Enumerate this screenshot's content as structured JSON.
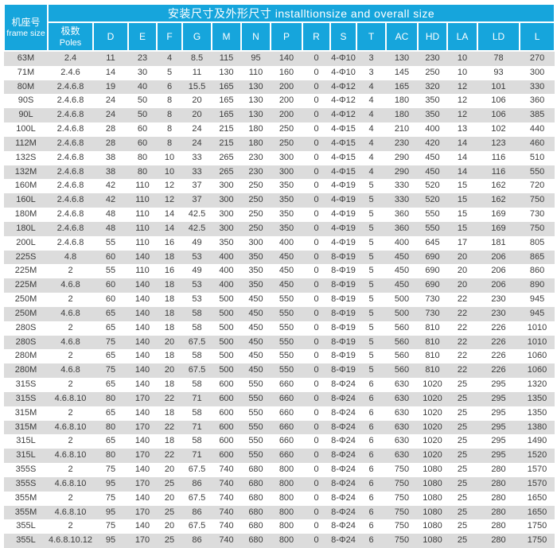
{
  "table": {
    "title": "安装尺寸及外形尺寸 installtionsize and overall size",
    "frame_header": {
      "zh": "机座号",
      "en": "frame size"
    },
    "poles_header": {
      "zh": "极数",
      "en": "Poles"
    },
    "letter_columns": [
      "D",
      "E",
      "F",
      "G",
      "M",
      "N",
      "P",
      "R",
      "S",
      "T",
      "AC",
      "HD",
      "LA",
      "LD",
      "L"
    ],
    "column_keys": [
      "frame_size",
      "poles",
      "d",
      "e",
      "f",
      "g",
      "m",
      "n",
      "p",
      "r",
      "s",
      "t",
      "ac",
      "hd",
      "la",
      "ld",
      "l"
    ],
    "colors": {
      "header_blue": "#16a5dc",
      "stripe_gray": "#dcdcdc",
      "text_dark": "#3c3c3c",
      "header_text": "#ffffff"
    },
    "rows": [
      [
        "63M",
        "2.4",
        "11",
        "23",
        "4",
        "8.5",
        "115",
        "95",
        "140",
        "0",
        "4-Φ10",
        "3",
        "130",
        "230",
        "10",
        "78",
        "270"
      ],
      [
        "71M",
        "2.4.6",
        "14",
        "30",
        "5",
        "11",
        "130",
        "110",
        "160",
        "0",
        "4-Φ10",
        "3",
        "145",
        "250",
        "10",
        "93",
        "300"
      ],
      [
        "80M",
        "2.4.6.8",
        "19",
        "40",
        "6",
        "15.5",
        "165",
        "130",
        "200",
        "0",
        "4-Φ12",
        "4",
        "165",
        "320",
        "12",
        "101",
        "330"
      ],
      [
        "90S",
        "2.4.6.8",
        "24",
        "50",
        "8",
        "20",
        "165",
        "130",
        "200",
        "0",
        "4-Φ12",
        "4",
        "180",
        "350",
        "12",
        "106",
        "360"
      ],
      [
        "90L",
        "2.4.6.8",
        "24",
        "50",
        "8",
        "20",
        "165",
        "130",
        "200",
        "0",
        "4-Φ12",
        "4",
        "180",
        "350",
        "12",
        "106",
        "385"
      ],
      [
        "100L",
        "2.4.6.8",
        "28",
        "60",
        "8",
        "24",
        "215",
        "180",
        "250",
        "0",
        "4-Φ15",
        "4",
        "210",
        "400",
        "13",
        "102",
        "440"
      ],
      [
        "112M",
        "2.4.6.8",
        "28",
        "60",
        "8",
        "24",
        "215",
        "180",
        "250",
        "0",
        "4-Φ15",
        "4",
        "230",
        "420",
        "14",
        "123",
        "460"
      ],
      [
        "132S",
        "2.4.6.8",
        "38",
        "80",
        "10",
        "33",
        "265",
        "230",
        "300",
        "0",
        "4-Φ15",
        "4",
        "290",
        "450",
        "14",
        "116",
        "510"
      ],
      [
        "132M",
        "2.4.6.8",
        "38",
        "80",
        "10",
        "33",
        "265",
        "230",
        "300",
        "0",
        "4-Φ15",
        "4",
        "290",
        "450",
        "14",
        "116",
        "550"
      ],
      [
        "160M",
        "2.4.6.8",
        "42",
        "110",
        "12",
        "37",
        "300",
        "250",
        "350",
        "0",
        "4-Φ19",
        "5",
        "330",
        "520",
        "15",
        "162",
        "720"
      ],
      [
        "160L",
        "2.4.6.8",
        "42",
        "110",
        "12",
        "37",
        "300",
        "250",
        "350",
        "0",
        "4-Φ19",
        "5",
        "330",
        "520",
        "15",
        "162",
        "750"
      ],
      [
        "180M",
        "2.4.6.8",
        "48",
        "110",
        "14",
        "42.5",
        "300",
        "250",
        "350",
        "0",
        "4-Φ19",
        "5",
        "360",
        "550",
        "15",
        "169",
        "730"
      ],
      [
        "180L",
        "2.4.6.8",
        "48",
        "110",
        "14",
        "42.5",
        "300",
        "250",
        "350",
        "0",
        "4-Φ19",
        "5",
        "360",
        "550",
        "15",
        "169",
        "750"
      ],
      [
        "200L",
        "2.4.6.8",
        "55",
        "110",
        "16",
        "49",
        "350",
        "300",
        "400",
        "0",
        "4-Φ19",
        "5",
        "400",
        "645",
        "17",
        "181",
        "805"
      ],
      [
        "225S",
        "4.8",
        "60",
        "140",
        "18",
        "53",
        "400",
        "350",
        "450",
        "0",
        "8-Φ19",
        "5",
        "450",
        "690",
        "20",
        "206",
        "865"
      ],
      [
        "225M",
        "2",
        "55",
        "110",
        "16",
        "49",
        "400",
        "350",
        "450",
        "0",
        "8-Φ19",
        "5",
        "450",
        "690",
        "20",
        "206",
        "860"
      ],
      [
        "225M",
        "4.6.8",
        "60",
        "140",
        "18",
        "53",
        "400",
        "350",
        "450",
        "0",
        "8-Φ19",
        "5",
        "450",
        "690",
        "20",
        "206",
        "890"
      ],
      [
        "250M",
        "2",
        "60",
        "140",
        "18",
        "53",
        "500",
        "450",
        "550",
        "0",
        "8-Φ19",
        "5",
        "500",
        "730",
        "22",
        "230",
        "945"
      ],
      [
        "250M",
        "4.6.8",
        "65",
        "140",
        "18",
        "58",
        "500",
        "450",
        "550",
        "0",
        "8-Φ19",
        "5",
        "500",
        "730",
        "22",
        "230",
        "945"
      ],
      [
        "280S",
        "2",
        "65",
        "140",
        "18",
        "58",
        "500",
        "450",
        "550",
        "0",
        "8-Φ19",
        "5",
        "560",
        "810",
        "22",
        "226",
        "1010"
      ],
      [
        "280S",
        "4.6.8",
        "75",
        "140",
        "20",
        "67.5",
        "500",
        "450",
        "550",
        "0",
        "8-Φ19",
        "5",
        "560",
        "810",
        "22",
        "226",
        "1010"
      ],
      [
        "280M",
        "2",
        "65",
        "140",
        "18",
        "58",
        "500",
        "450",
        "550",
        "0",
        "8-Φ19",
        "5",
        "560",
        "810",
        "22",
        "226",
        "1060"
      ],
      [
        "280M",
        "4.6.8",
        "75",
        "140",
        "20",
        "67.5",
        "500",
        "450",
        "550",
        "0",
        "8-Φ19",
        "5",
        "560",
        "810",
        "22",
        "226",
        "1060"
      ],
      [
        "315S",
        "2",
        "65",
        "140",
        "18",
        "58",
        "600",
        "550",
        "660",
        "0",
        "8-Φ24",
        "6",
        "630",
        "1020",
        "25",
        "295",
        "1320"
      ],
      [
        "315S",
        "4.6.8.10",
        "80",
        "170",
        "22",
        "71",
        "600",
        "550",
        "660",
        "0",
        "8-Φ24",
        "6",
        "630",
        "1020",
        "25",
        "295",
        "1350"
      ],
      [
        "315M",
        "2",
        "65",
        "140",
        "18",
        "58",
        "600",
        "550",
        "660",
        "0",
        "8-Φ24",
        "6",
        "630",
        "1020",
        "25",
        "295",
        "1350"
      ],
      [
        "315M",
        "4.6.8.10",
        "80",
        "170",
        "22",
        "71",
        "600",
        "550",
        "660",
        "0",
        "8-Φ24",
        "6",
        "630",
        "1020",
        "25",
        "295",
        "1380"
      ],
      [
        "315L",
        "2",
        "65",
        "140",
        "18",
        "58",
        "600",
        "550",
        "660",
        "0",
        "8-Φ24",
        "6",
        "630",
        "1020",
        "25",
        "295",
        "1490"
      ],
      [
        "315L",
        "4.6.8.10",
        "80",
        "170",
        "22",
        "71",
        "600",
        "550",
        "660",
        "0",
        "8-Φ24",
        "6",
        "630",
        "1020",
        "25",
        "295",
        "1520"
      ],
      [
        "355S",
        "2",
        "75",
        "140",
        "20",
        "67.5",
        "740",
        "680",
        "800",
        "0",
        "8-Φ24",
        "6",
        "750",
        "1080",
        "25",
        "280",
        "1570"
      ],
      [
        "355S",
        "4.6.8.10",
        "95",
        "170",
        "25",
        "86",
        "740",
        "680",
        "800",
        "0",
        "8-Φ24",
        "6",
        "750",
        "1080",
        "25",
        "280",
        "1570"
      ],
      [
        "355M",
        "2",
        "75",
        "140",
        "20",
        "67.5",
        "740",
        "680",
        "800",
        "0",
        "8-Φ24",
        "6",
        "750",
        "1080",
        "25",
        "280",
        "1650"
      ],
      [
        "355M",
        "4.6.8.10",
        "95",
        "170",
        "25",
        "86",
        "740",
        "680",
        "800",
        "0",
        "8-Φ24",
        "6",
        "750",
        "1080",
        "25",
        "280",
        "1650"
      ],
      [
        "355L",
        "2",
        "75",
        "140",
        "20",
        "67.5",
        "740",
        "680",
        "800",
        "0",
        "8-Φ24",
        "6",
        "750",
        "1080",
        "25",
        "280",
        "1750"
      ],
      [
        "355L",
        "4.6.8.10.12",
        "95",
        "170",
        "25",
        "86",
        "740",
        "680",
        "800",
        "0",
        "8-Φ24",
        "6",
        "750",
        "1080",
        "25",
        "280",
        "1750"
      ]
    ]
  }
}
